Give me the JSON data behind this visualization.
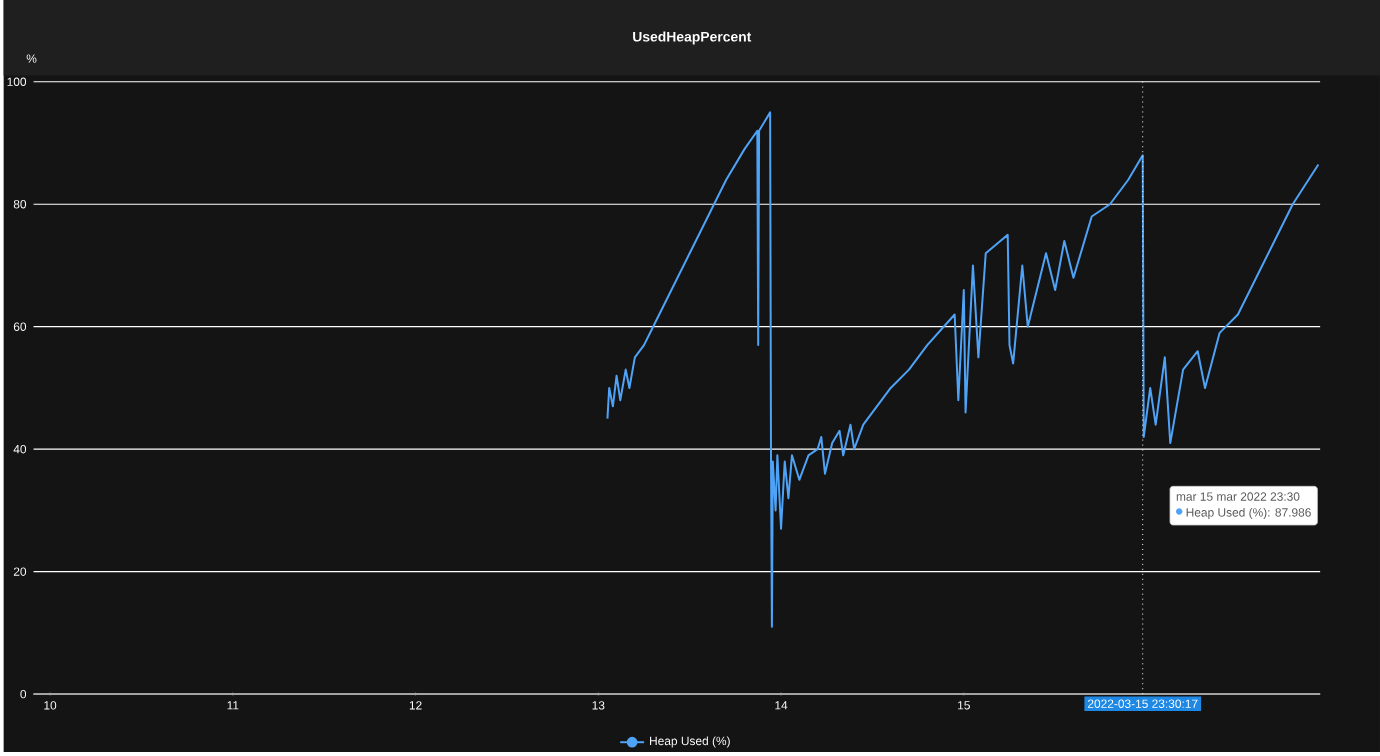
{
  "chart_data": {
    "type": "line",
    "title": "UsedHeapPercent",
    "ylabel": "%",
    "xlim": [
      "2022-03-09T21:50",
      "2022-03-16T22:48"
    ],
    "ylim": [
      0,
      100
    ],
    "xticks": [
      {
        "value": "2022-03-10",
        "label": "10"
      },
      {
        "value": "2022-03-11",
        "label": "11"
      },
      {
        "value": "2022-03-12",
        "label": "12"
      },
      {
        "value": "2022-03-13",
        "label": "13"
      },
      {
        "value": "2022-03-14",
        "label": "14"
      },
      {
        "value": "2022-03-15",
        "label": "15"
      }
    ],
    "yticks": [
      0,
      20,
      40,
      60,
      80,
      100
    ],
    "grid": "y",
    "legend": "bottom",
    "ref_lines": [
      {
        "axis": "x",
        "value": "2022-03-15T23:30",
        "label": "2022-03-15 23:30:17"
      }
    ],
    "annotations": [
      "mar 15 mar 2022 23:30",
      "Heap Used (%): 87.986"
    ],
    "x": [
      "2022-03-13T01:12",
      "2022-03-13T01:26",
      "2022-03-13T01:55",
      "2022-03-13T02:24",
      "2022-03-13T02:53",
      "2022-03-13T03:36",
      "2022-03-13T04:05",
      "2022-03-13T04:48",
      "2022-03-13T06:00",
      "2022-03-13T07:12",
      "2022-03-13T09:36",
      "2022-03-13T12:00",
      "2022-03-13T14:24",
      "2022-03-13T16:48",
      "2022-03-13T19:12",
      "2022-03-13T20:53",
      "2022-03-13T21:00",
      "2022-03-13T21:07",
      "2022-03-13T22:05",
      "2022-03-13T22:34",
      "2022-03-13T22:41",
      "2022-03-13T22:48",
      "2022-03-13T22:55",
      "2022-03-13T23:17",
      "2022-03-13T23:31",
      "2022-03-14T00:00",
      "2022-03-14T00:29",
      "2022-03-14T00:58",
      "2022-03-14T01:26",
      "2022-03-14T02:24",
      "2022-03-14T03:36",
      "2022-03-14T04:48",
      "2022-03-14T05:17",
      "2022-03-14T05:46",
      "2022-03-14T06:43",
      "2022-03-14T07:41",
      "2022-03-14T08:10",
      "2022-03-14T09:07",
      "2022-03-14T09:36",
      "2022-03-14T10:48",
      "2022-03-14T12:00",
      "2022-03-14T14:24",
      "2022-03-14T16:48",
      "2022-03-14T19:12",
      "2022-03-14T22:48",
      "2022-03-14T23:17",
      "2022-03-15T00:00",
      "2022-03-15T00:14",
      "2022-03-15T01:12",
      "2022-03-15T01:55",
      "2022-03-15T02:53",
      "2022-03-15T04:48",
      "2022-03-15T05:46",
      "2022-03-15T06:00",
      "2022-03-15T06:29",
      "2022-03-15T07:41",
      "2022-03-15T08:24",
      "2022-03-15T10:48",
      "2022-03-15T12:00",
      "2022-03-15T13:12",
      "2022-03-15T14:24",
      "2022-03-15T16:48",
      "2022-03-15T19:12",
      "2022-03-15T21:36",
      "2022-03-15T23:30",
      "2022-03-15T23:38",
      "2022-03-16T00:29",
      "2022-03-16T01:12",
      "2022-03-16T02:24",
      "2022-03-16T03:07",
      "2022-03-16T04:48",
      "2022-03-16T06:43",
      "2022-03-16T07:41",
      "2022-03-16T09:36",
      "2022-03-16T12:00",
      "2022-03-16T14:24",
      "2022-03-16T16:48",
      "2022-03-16T19:12",
      "2022-03-16T22:34"
    ],
    "series": [
      {
        "name": "Heap Used (%)",
        "color": "#4fa3f7",
        "values": [
          45,
          50,
          47,
          52,
          48,
          53,
          50,
          55,
          57,
          60,
          66,
          72,
          78,
          84,
          89,
          92,
          57,
          92,
          94,
          95,
          38,
          11,
          38,
          30,
          39,
          27,
          38,
          32,
          39,
          35,
          39,
          40,
          42,
          36,
          41,
          43,
          39,
          44,
          40,
          44,
          46,
          50,
          53,
          57,
          62,
          48,
          66,
          46,
          70,
          55,
          72,
          74,
          75,
          57,
          54,
          70,
          60,
          72,
          66,
          74,
          68,
          78,
          80,
          84,
          88,
          42,
          50,
          44,
          55,
          41,
          53,
          56,
          50,
          59,
          62,
          68,
          74,
          80,
          86.5
        ]
      }
    ]
  }
}
